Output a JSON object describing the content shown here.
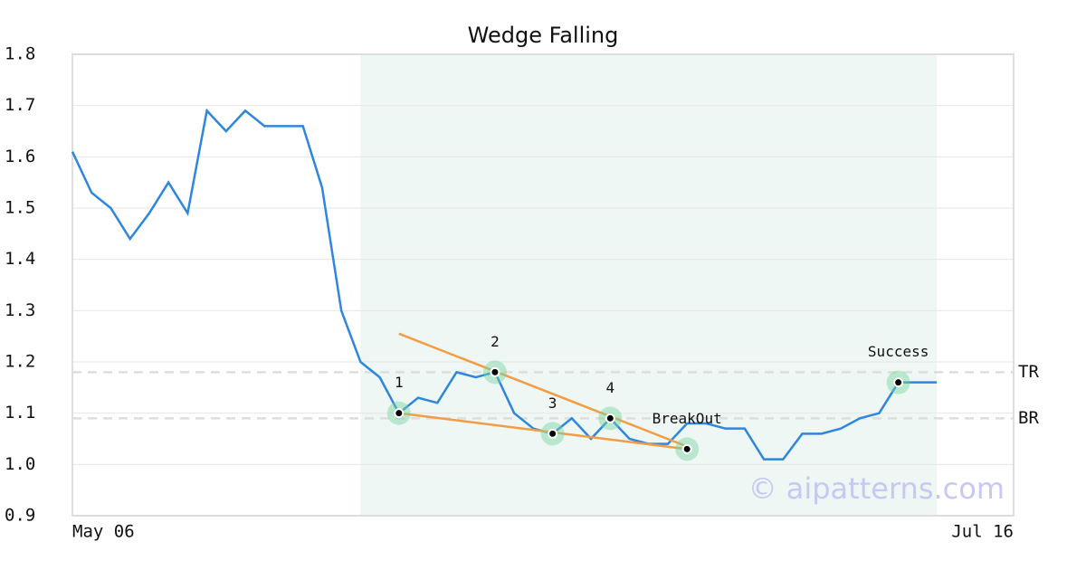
{
  "chart_data": {
    "type": "line",
    "title": "Wedge Falling",
    "x": [
      0,
      1,
      2,
      3,
      4,
      5,
      6,
      7,
      8,
      9,
      10,
      11,
      12,
      13,
      14,
      15,
      16,
      17,
      18,
      19,
      20,
      21,
      22,
      23,
      24,
      25,
      26,
      27,
      28,
      29,
      30,
      31,
      32,
      33,
      34,
      35,
      36,
      37,
      38,
      39,
      40,
      41,
      42,
      43,
      44,
      45
    ],
    "series": [
      {
        "color": "#2e86de",
        "values": [
          1.61,
          1.53,
          1.5,
          1.44,
          1.49,
          1.55,
          1.49,
          1.69,
          1.65,
          1.69,
          1.66,
          1.66,
          1.66,
          1.54,
          1.3,
          1.2,
          1.17,
          1.1,
          1.13,
          1.12,
          1.18,
          1.17,
          1.18,
          1.1,
          1.07,
          1.06,
          1.09,
          1.05,
          1.09,
          1.05,
          1.04,
          1.04,
          1.08,
          1.08,
          1.07,
          1.07,
          1.01,
          1.01,
          1.06,
          1.06,
          1.07,
          1.09,
          1.1,
          1.16,
          1.16,
          1.16
        ]
      }
    ],
    "xlim": [
      0,
      49
    ],
    "xticks": [
      {
        "value": 0,
        "label": "May 06"
      },
      {
        "value": 49,
        "label": "Jul 16"
      }
    ],
    "ylim": [
      0.9,
      1.8
    ],
    "yticks": [
      0.9,
      {
        "value": 1.0,
        "label": "1.0"
      },
      1.1,
      1.2,
      1.3,
      1.4,
      1.5,
      1.6,
      1.7,
      1.8
    ],
    "grid": true,
    "shaded_region": {
      "x": [
        15,
        45
      ],
      "color": "#eef7f3"
    },
    "points": [
      {
        "label": "1",
        "x": 17,
        "y": 1.1
      },
      {
        "label": "2",
        "x": 22,
        "y": 1.18
      },
      {
        "label": "3",
        "x": 25,
        "y": 1.06
      },
      {
        "label": "4",
        "x": 28,
        "y": 1.09
      },
      {
        "label": "BreakOut",
        "x": 32,
        "y": 1.03
      },
      {
        "label": "Success",
        "x": 43,
        "y": 1.16
      }
    ],
    "trend_lines": [
      {
        "color": "#f39c44",
        "x": [
          17,
          32
        ],
        "y": [
          1.255,
          1.035
        ]
      },
      {
        "color": "#f39c44",
        "x": [
          17,
          32
        ],
        "y": [
          1.1,
          1.03
        ]
      }
    ],
    "levels": [
      {
        "label": "TR",
        "value": 1.18
      },
      {
        "label": "BR",
        "value": 1.09
      }
    ],
    "watermark": "© aipatterns.com"
  }
}
